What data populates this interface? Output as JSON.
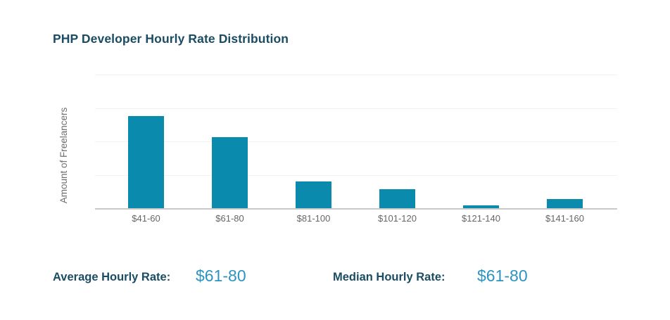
{
  "header": {
    "title": "PHP Developer Hourly Rate Distribution"
  },
  "chart_data": {
    "type": "bar",
    "title": "PHP Developer Hourly Rate Distribution",
    "categories": [
      "$41-60",
      "$61-80",
      "$81-100",
      "$101-120",
      "$121-140",
      "$141-160"
    ],
    "values": [
      69,
      53,
      20,
      14,
      2,
      7
    ],
    "values_note": "relative units estimated from gridlines; y-axis has no numeric tick labels, top gridline = 100",
    "xlabel": "",
    "ylabel": "Amount of Freelancers",
    "ylim": [
      0,
      100
    ],
    "grid": true,
    "legend": false
  },
  "stats": {
    "average": {
      "label": "Average Hourly Rate:",
      "value": "$61-80"
    },
    "median": {
      "label": "Median Hourly Rate:",
      "value": "$61-80"
    }
  },
  "colors": {
    "heading": "#1a4c63",
    "bar": "#0a8aad",
    "value_blue": "#2d93c0",
    "tick_text": "#666666",
    "axis_label_text": "#6e6e6e",
    "grid_line": "#f2f2f2",
    "axis_line": "#c9c9c9",
    "background": "#ffffff"
  }
}
